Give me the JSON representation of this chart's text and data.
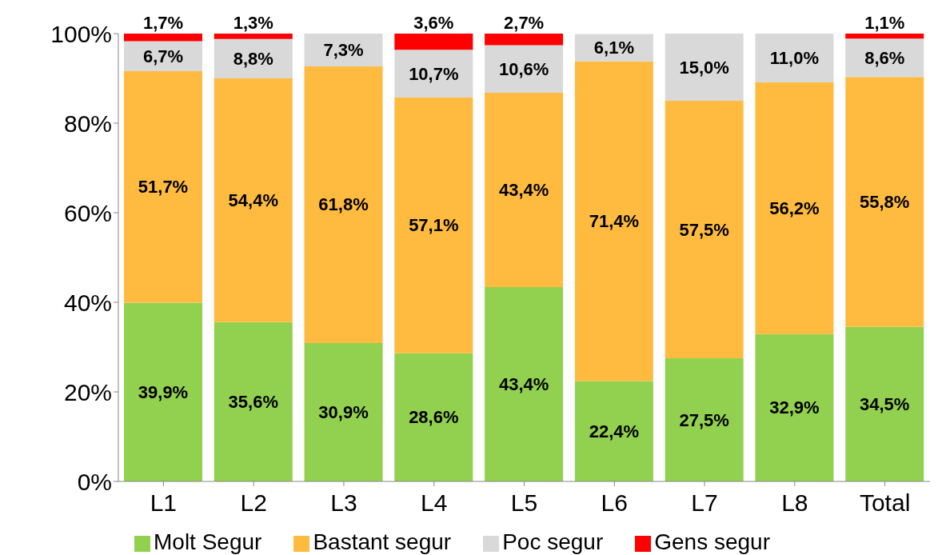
{
  "chart_data": {
    "type": "bar",
    "stacked": true,
    "categories": [
      "L1",
      "L2",
      "L3",
      "L4",
      "L5",
      "L6",
      "L7",
      "L8",
      "Total"
    ],
    "series": [
      {
        "name": "Molt Segur",
        "color": "#92d050",
        "values": [
          39.9,
          35.6,
          30.9,
          28.6,
          43.4,
          22.4,
          27.5,
          32.9,
          34.5
        ],
        "value_labels": [
          "39,9%",
          "35,6%",
          "30,9%",
          "28,6%",
          "43,4%",
          "22,4%",
          "27,5%",
          "32,9%",
          "34,5%"
        ]
      },
      {
        "name": "Bastant segur",
        "color": "#ffbb3f",
        "values": [
          51.7,
          54.4,
          61.8,
          57.1,
          43.4,
          71.4,
          57.5,
          56.2,
          55.8
        ],
        "value_labels": [
          "51,7%",
          "54,4%",
          "61,8%",
          "57,1%",
          "43,4%",
          "71,4%",
          "57,5%",
          "56,2%",
          "55,8%"
        ]
      },
      {
        "name": "Poc segur",
        "color": "#d9d9d9",
        "values": [
          6.7,
          8.8,
          7.3,
          10.7,
          10.6,
          6.1,
          15.0,
          11.0,
          8.6
        ],
        "value_labels": [
          "6,7%",
          "8,8%",
          "7,3%",
          "10,7%",
          "10,6%",
          "6,1%",
          "15,0%",
          "11,0%",
          "8,6%"
        ]
      },
      {
        "name": "Gens segur",
        "color": "#ff0000",
        "values": [
          1.7,
          1.3,
          0,
          3.6,
          2.7,
          0,
          0,
          0,
          1.1
        ],
        "value_labels": [
          "1,7%",
          "1,3%",
          null,
          "3,6%",
          "2,7%",
          null,
          null,
          null,
          "1,1%"
        ]
      }
    ],
    "ylim": [
      0,
      100
    ],
    "yticks": [
      {
        "value": 0,
        "label": "0%"
      },
      {
        "value": 20,
        "label": "20%"
      },
      {
        "value": 40,
        "label": "40%"
      },
      {
        "value": 60,
        "label": "60%"
      },
      {
        "value": 80,
        "label": "80%"
      },
      {
        "value": 100,
        "label": "100%"
      }
    ],
    "grid": false,
    "legend": "bottom"
  }
}
